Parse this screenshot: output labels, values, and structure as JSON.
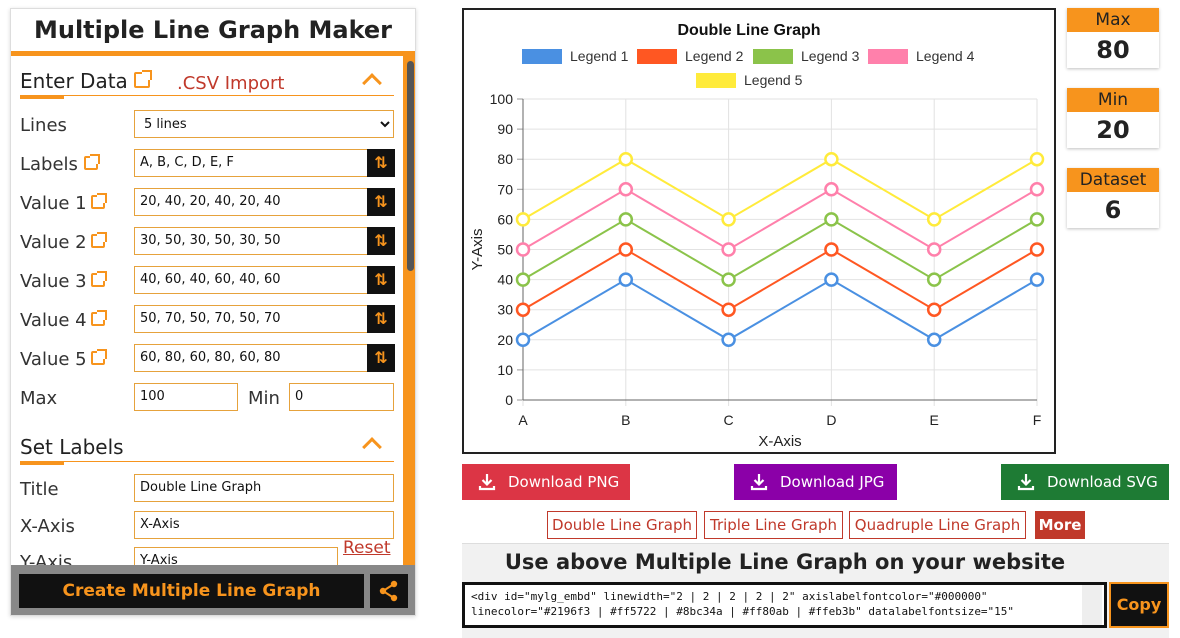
{
  "app_title": "Multiple Line Graph Maker",
  "enter_data": {
    "heading": "Enter Data",
    "csv_import": ".CSV Import",
    "lines_label": "Lines",
    "lines_value": "5 lines",
    "labels_label": "Labels",
    "labels_value": "A, B, C, D, E, F",
    "value_rows": [
      {
        "label": "Value 1",
        "value": "20, 40, 20, 40, 20, 40"
      },
      {
        "label": "Value 2",
        "value": "30, 50, 30, 50, 30, 50"
      },
      {
        "label": "Value 3",
        "value": "40, 60, 40, 60, 40, 60"
      },
      {
        "label": "Value 4",
        "value": "50, 70, 50, 70, 50, 70"
      },
      {
        "label": "Value 5",
        "value": "60, 80, 60, 80, 60, 80"
      }
    ],
    "max_label": "Max",
    "max_value": "100",
    "min_label": "Min",
    "min_value": "0"
  },
  "set_labels": {
    "heading": "Set Labels",
    "title_label": "Title",
    "title_value": "Double Line Graph",
    "xaxis_label": "X-Axis",
    "xaxis_value": "X-Axis",
    "yaxis_label": "Y-Axis",
    "yaxis_value": "Y-Axis",
    "reset": "Reset"
  },
  "create_button": "Create Multiple Line Graph",
  "stats": {
    "max_label": "Max",
    "max_value": "80",
    "min_label": "Min",
    "min_value": "20",
    "dataset_label": "Dataset",
    "dataset_value": "6"
  },
  "downloads": {
    "png": "Download PNG",
    "jpg": "Download JPG",
    "svg": "Download SVG",
    "png_color": "#dc3545",
    "jpg_color": "#8b00a8",
    "svg_color": "#1e7b34"
  },
  "links": [
    "Double Line Graph",
    "Triple Line Graph",
    "Quadruple Line Graph"
  ],
  "more": "More",
  "embed": {
    "title": "Use above Multiple Line Graph on your website",
    "code_line1": "<div id=\"mylg_embd\" linewidth=\"2 | 2 | 2 | 2 | 2\" axislabelfontcolor=\"#000000\"",
    "code_line2": "linecolor=\"#2196f3 | #ff5722 | #8bc34a | #ff80ab | #ffeb3b\" datalabelfontsize=\"15\"",
    "copy": "Copy"
  },
  "chart_data": {
    "type": "line",
    "title": "Double Line Graph",
    "xlabel": "X-Axis",
    "ylabel": "Y-Axis",
    "categories": [
      "A",
      "B",
      "C",
      "D",
      "E",
      "F"
    ],
    "ylim": [
      0,
      100
    ],
    "yticks": [
      0,
      10,
      20,
      30,
      40,
      50,
      60,
      70,
      80,
      90,
      100
    ],
    "grid": true,
    "legend_position": "top",
    "series": [
      {
        "name": "Legend 1",
        "color": "#4a90e2",
        "values": [
          20,
          40,
          20,
          40,
          20,
          40
        ]
      },
      {
        "name": "Legend 2",
        "color": "#ff5722",
        "values": [
          30,
          50,
          30,
          50,
          30,
          50
        ]
      },
      {
        "name": "Legend 3",
        "color": "#8bc34a",
        "values": [
          40,
          60,
          40,
          60,
          40,
          60
        ]
      },
      {
        "name": "Legend 4",
        "color": "#ff80ab",
        "values": [
          50,
          70,
          50,
          70,
          50,
          70
        ]
      },
      {
        "name": "Legend 5",
        "color": "#ffeb3b",
        "values": [
          60,
          80,
          60,
          80,
          60,
          80
        ]
      }
    ]
  }
}
